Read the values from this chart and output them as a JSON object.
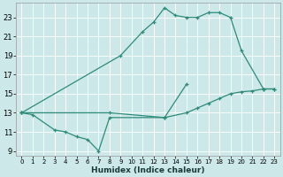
{
  "xlabel": "Humidex (Indice chaleur)",
  "bg_color": "#cce8e8",
  "grid_color": "#b0d0d0",
  "line_color": "#2e8b7a",
  "xlim": [
    -0.5,
    23.5
  ],
  "ylim": [
    8.5,
    24.5
  ],
  "xticks": [
    0,
    1,
    2,
    3,
    4,
    5,
    6,
    7,
    8,
    9,
    10,
    11,
    12,
    13,
    14,
    15,
    16,
    17,
    18,
    19,
    20,
    21,
    22,
    23
  ],
  "yticks": [
    9,
    11,
    13,
    15,
    17,
    19,
    21,
    23
  ],
  "series": [
    {
      "x": [
        0,
        1,
        3,
        4,
        5,
        6,
        7,
        8,
        13,
        15
      ],
      "y": [
        13.0,
        12.8,
        11.2,
        11.0,
        10.5,
        10.2,
        9.0,
        12.5,
        12.5,
        16.0
      ]
    },
    {
      "x": [
        0,
        9,
        11,
        12,
        13,
        14,
        15,
        16,
        17,
        18,
        19,
        20,
        22,
        23
      ],
      "y": [
        13.0,
        19.0,
        21.5,
        22.5,
        24.0,
        23.2,
        23.0,
        23.0,
        23.5,
        23.5,
        23.0,
        19.5,
        15.5,
        15.5
      ]
    },
    {
      "x": [
        0,
        8,
        13,
        15,
        16,
        17,
        18,
        19,
        20,
        21,
        22,
        23
      ],
      "y": [
        13.0,
        13.0,
        12.5,
        13.0,
        13.5,
        14.0,
        14.5,
        15.0,
        15.2,
        15.3,
        15.5,
        15.5
      ]
    }
  ]
}
